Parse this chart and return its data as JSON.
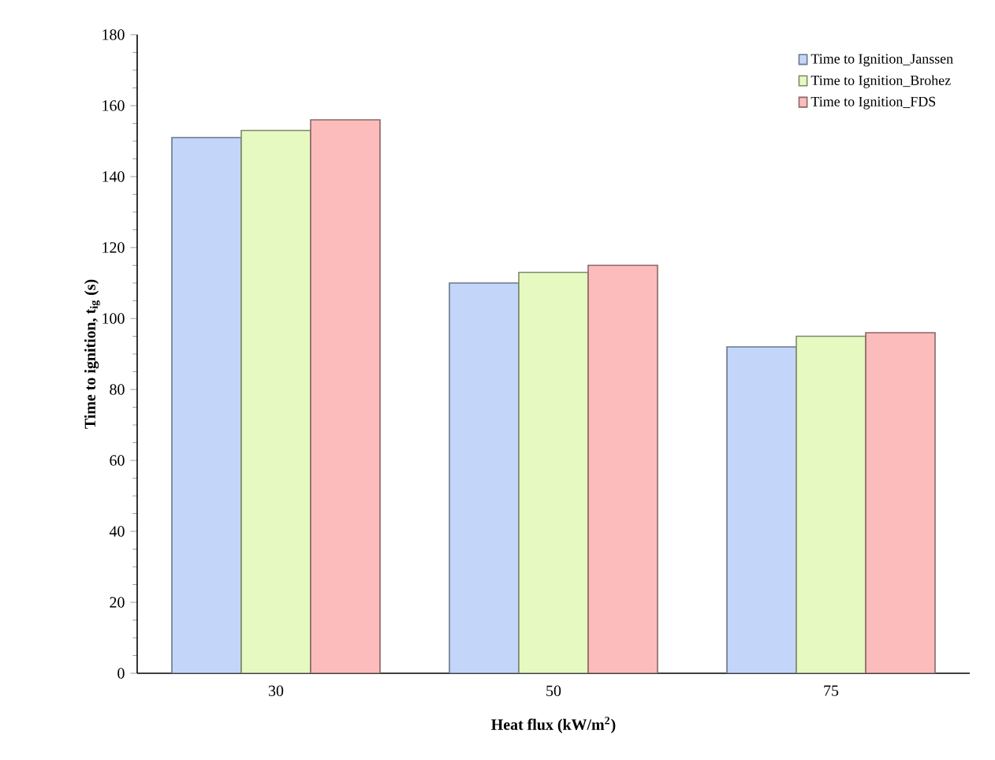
{
  "chart_data": {
    "type": "bar",
    "xlabel": "Heat flux (kW/m$^{2}$)",
    "ylabel": "Time to ignition, t$_{ig}$ (s)",
    "categories": [
      "30",
      "50",
      "75"
    ],
    "series": [
      {
        "name": "Time to Ignition_Janssen",
        "color": "#c3d6fa",
        "values": [
          151,
          110,
          92
        ]
      },
      {
        "name": "Time to Ignition_Brohez",
        "color": "#e6f9c0",
        "values": [
          153,
          113,
          95
        ]
      },
      {
        "name": "Time to Ignition_FDS",
        "color": "#fdbcbc",
        "values": [
          156,
          115,
          96
        ]
      }
    ],
    "ylim": [
      0,
      180
    ],
    "yticks": [
      0,
      20,
      40,
      60,
      80,
      100,
      120,
      140,
      160,
      180
    ],
    "legend": "top right"
  }
}
